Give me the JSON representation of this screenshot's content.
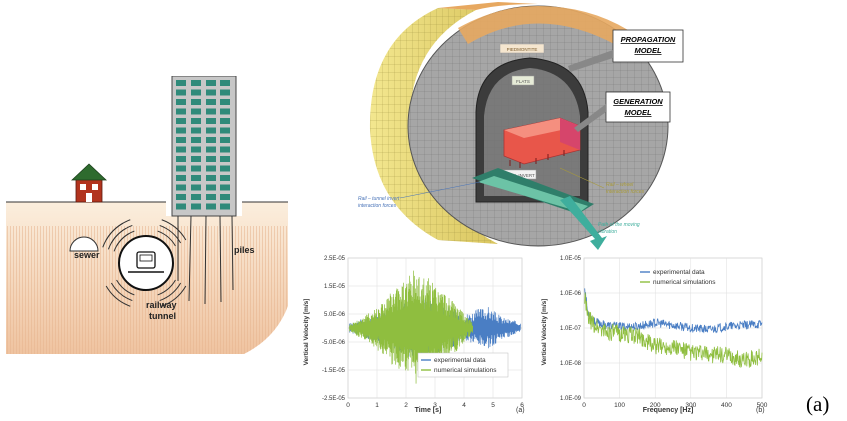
{
  "left_diagram": {
    "labels": {
      "sewer": "sewer",
      "piles": "piles",
      "railway": "railway",
      "tunnel": "tunnel"
    },
    "colors": {
      "ground_top": "#fbeedd",
      "ground_bottom": "#f1c9a9",
      "building": "#c7c7c7",
      "window": "#2f8a7a",
      "house_roof": "#2e6b2e",
      "house_wall": "#b2341e"
    }
  },
  "tunnel_model": {
    "labels": {
      "propagation_model": [
        "PROPAGATION",
        "MODEL"
      ],
      "generation_model": [
        "GENERATION",
        "MODEL"
      ],
      "rail_tunnel": [
        "Rail – tunnel invert",
        "interaction forces"
      ],
      "rail_wheel": [
        "Rail – wheel",
        "interaction forces"
      ],
      "path_vibration": [
        "Path of the moving",
        "vibration"
      ],
      "tag_top": "PIEDMONTITE",
      "tag_mid": "FLATS",
      "tag_invert": "TUNNEL INVERT"
    },
    "colors": {
      "soil_outer": "#e8d97c",
      "soil_top": "#e7a860",
      "lining": "#9a9a9a",
      "train": "#e8564a",
      "label_green": "#3fae9d",
      "label_blue": "#4a74b8",
      "label_olive": "#a89a3a"
    }
  },
  "chart_data": [
    {
      "type": "line",
      "xlabel": "Time [s]",
      "ylabel": "Vertical Velocity  [m/s]",
      "xlim": [
        0,
        6
      ],
      "x_ticks": [
        "0",
        "1",
        "2",
        "3",
        "4",
        "5",
        "6"
      ],
      "y_ticks": [
        "2.5E-05",
        "1.5E-05",
        "5.0E-06",
        "-5.0E-06",
        "-1.5E-05",
        "-2.5E-05"
      ],
      "ylim": [
        -2.5e-05,
        2.5e-05
      ],
      "legend": [
        "experimental data",
        "numerical simulations"
      ],
      "legend_position": "bottom-right",
      "panel_label": "(a)",
      "series": [
        {
          "name": "experimental data",
          "color": "#4a7ec4",
          "t_range": [
            0.05,
            5.95
          ],
          "envelope": [
            [
              0,
              1.5e-06
            ],
            [
              1.0,
              5e-06
            ],
            [
              2.0,
              1e-05
            ],
            [
              2.5,
              1.2e-05
            ],
            [
              3.2,
              9e-06
            ],
            [
              4.0,
              5e-06
            ],
            [
              4.8,
              8e-06
            ],
            [
              5.3,
              4e-06
            ],
            [
              5.95,
              2e-06
            ]
          ]
        },
        {
          "name": "numerical simulations",
          "color": "#8fbe3f",
          "t_range": [
            0.05,
            4.3
          ],
          "envelope": [
            [
              0,
              1e-06
            ],
            [
              0.8,
              6e-06
            ],
            [
              1.5,
              1.3e-05
            ],
            [
              2.3,
              2.1e-05
            ],
            [
              2.8,
              1.8e-05
            ],
            [
              3.5,
              1.1e-05
            ],
            [
              4.1,
              4e-06
            ],
            [
              4.3,
              2e-06
            ]
          ]
        }
      ]
    },
    {
      "type": "line",
      "xlabel": "Frequency [Hz]",
      "ylabel": "Vertical Velocity  [m/s]",
      "xlim": [
        0,
        500
      ],
      "x_ticks": [
        "0",
        "100",
        "200",
        "300",
        "400",
        "500"
      ],
      "y_ticks": [
        "1.0E-05",
        "1.0E-06",
        "1.0E-07",
        "1.0E-08",
        "1.0E-09"
      ],
      "ylim_log10": [
        -9,
        -5
      ],
      "scale_y": "log",
      "legend": [
        "experimental data",
        "numerical simulations"
      ],
      "legend_position": "top-right",
      "panel_label": "(b)",
      "series": [
        {
          "name": "experimental data",
          "color": "#4a7ec4",
          "points": [
            [
              2,
              1.5e-06
            ],
            [
              10,
              3e-07
            ],
            [
              30,
              1.5e-07
            ],
            [
              60,
              1.2e-07
            ],
            [
              100,
              1.1e-07
            ],
            [
              150,
              1.1e-07
            ],
            [
              200,
              1.4e-07
            ],
            [
              250,
              1.2e-07
            ],
            [
              300,
              1e-07
            ],
            [
              350,
              9e-08
            ],
            [
              400,
              1.1e-07
            ],
            [
              450,
              1.2e-07
            ],
            [
              500,
              1.3e-07
            ]
          ]
        },
        {
          "name": "numerical simulations",
          "color": "#8fbe3f",
          "points": [
            [
              2,
              8e-07
            ],
            [
              10,
              2e-07
            ],
            [
              30,
              1.2e-07
            ],
            [
              60,
              8e-08
            ],
            [
              100,
              7e-08
            ],
            [
              150,
              6e-08
            ],
            [
              200,
              3e-08
            ],
            [
              250,
              3e-08
            ],
            [
              300,
              2e-08
            ],
            [
              350,
              1.8e-08
            ],
            [
              400,
              1.6e-08
            ],
            [
              450,
              1.2e-08
            ],
            [
              500,
              1.5e-08
            ]
          ]
        }
      ]
    }
  ],
  "figure_label": "(a)"
}
